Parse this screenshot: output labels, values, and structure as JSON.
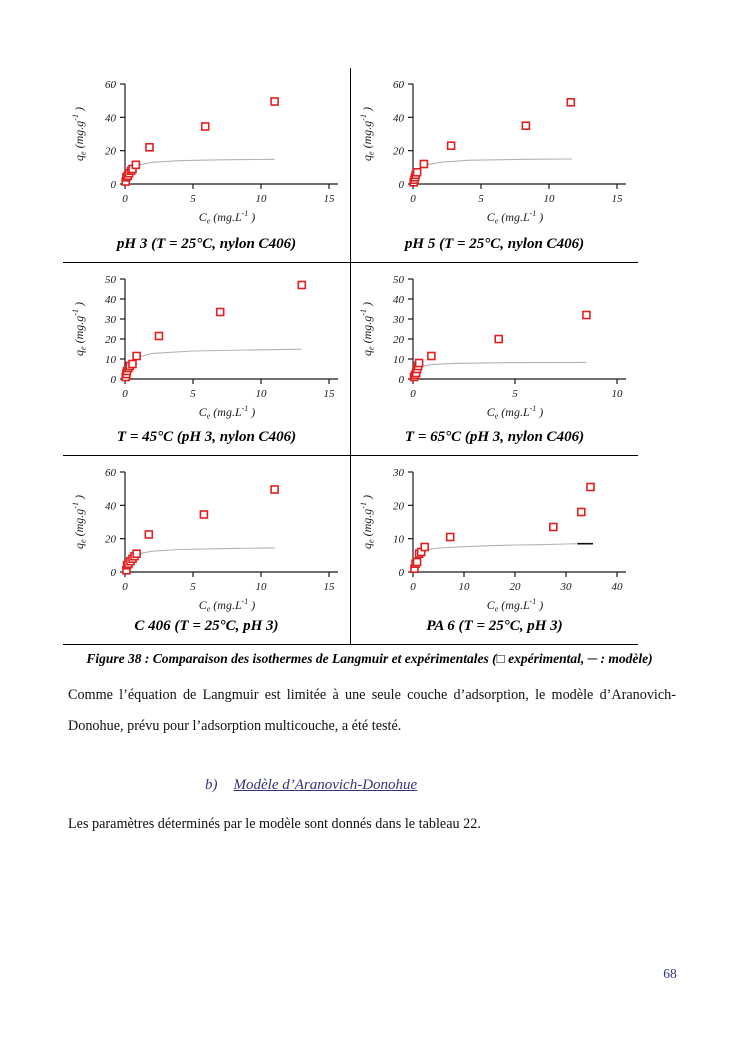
{
  "figure": {
    "caption": "Figure 38 : Comparaison des isothermes de Langmuir et expérimentales (□ expérimental, ─ : modèle)",
    "axis": {
      "xlabel": "Ce (mg.L-1)",
      "ylabel": "qe (mg.g-1)"
    },
    "marker_color": "#e02020",
    "model_color": "#b3b3b3",
    "axis_color": "#1a1a1a"
  },
  "chart_data": [
    {
      "type": "scatter",
      "title": "pH 3 (T = 25°C, nylon C406)",
      "xlabel": "Ce (mg.L-1)",
      "ylabel": "qe (mg.g-1)",
      "xlim": [
        0,
        15
      ],
      "xticks": [
        0,
        5,
        10,
        15
      ],
      "ylim": [
        0,
        60
      ],
      "yticks": [
        0,
        20,
        40,
        60
      ],
      "points": [
        [
          0.05,
          1.5
        ],
        [
          0.1,
          4
        ],
        [
          0.2,
          5
        ],
        [
          0.3,
          6.5
        ],
        [
          0.45,
          8
        ],
        [
          0.55,
          9
        ],
        [
          0.8,
          11.5
        ],
        [
          1.8,
          22
        ],
        [
          5.9,
          34.5
        ],
        [
          11,
          49.5
        ]
      ],
      "model": [
        [
          0.05,
          1
        ],
        [
          0.3,
          7
        ],
        [
          0.6,
          9.5
        ],
        [
          1,
          11.5
        ],
        [
          2,
          13
        ],
        [
          4,
          14
        ],
        [
          7,
          14.5
        ],
        [
          11,
          14.8
        ]
      ],
      "legend": {
        "points": "expérimental",
        "model": "modèle"
      }
    },
    {
      "type": "scatter",
      "title": "pH 5 (T = 25°C, nylon C406)",
      "xlabel": "Ce (mg.L-1)",
      "ylabel": "qe (mg.g-1)",
      "xlim": [
        0,
        15
      ],
      "xticks": [
        0,
        5,
        10,
        15
      ],
      "ylim": [
        0,
        60
      ],
      "yticks": [
        0,
        20,
        40,
        60
      ],
      "points": [
        [
          0.05,
          1
        ],
        [
          0.1,
          2.5
        ],
        [
          0.15,
          4
        ],
        [
          0.2,
          5.5
        ],
        [
          0.3,
          7
        ],
        [
          0.8,
          12
        ],
        [
          2.8,
          23
        ],
        [
          8.3,
          35
        ],
        [
          11.6,
          49
        ]
      ],
      "model": [
        [
          0.05,
          1
        ],
        [
          0.3,
          7
        ],
        [
          0.6,
          9.5
        ],
        [
          1,
          11.5
        ],
        [
          2,
          13
        ],
        [
          4,
          14.2
        ],
        [
          8,
          14.8
        ],
        [
          11.7,
          15
        ]
      ],
      "legend": {
        "points": "expérimental",
        "model": "modèle"
      }
    },
    {
      "type": "scatter",
      "title": "T = 45°C (pH 3, nylon C406)",
      "xlabel": "Ce (mg.L-1)",
      "ylabel": "qe (mg.g-1)",
      "xlim": [
        0,
        15
      ],
      "xticks": [
        0,
        5,
        10,
        15
      ],
      "ylim": [
        0,
        50
      ],
      "yticks": [
        0,
        10,
        20,
        30,
        40,
        50
      ],
      "points": [
        [
          0.05,
          1
        ],
        [
          0.1,
          2.5
        ],
        [
          0.15,
          4
        ],
        [
          0.25,
          5.5
        ],
        [
          0.35,
          6.5
        ],
        [
          0.55,
          7.5
        ],
        [
          0.85,
          11.5
        ],
        [
          2.5,
          21.5
        ],
        [
          7,
          33.5
        ],
        [
          13,
          47
        ]
      ],
      "model": [
        [
          0.05,
          1
        ],
        [
          0.3,
          6
        ],
        [
          0.6,
          9
        ],
        [
          1,
          11
        ],
        [
          2,
          12.8
        ],
        [
          5,
          14
        ],
        [
          9,
          14.5
        ],
        [
          13,
          14.9
        ]
      ],
      "legend": {
        "points": "expérimental",
        "model": "modèle"
      }
    },
    {
      "type": "scatter",
      "title": "T = 65°C (pH 3, nylon C406)",
      "xlabel": "Ce (mg.L-1)",
      "ylabel": "qe (mg.g-1)",
      "xlim": [
        0,
        10
      ],
      "xticks": [
        0,
        5,
        10
      ],
      "ylim": [
        0,
        50
      ],
      "yticks": [
        0,
        10,
        20,
        30,
        40,
        50
      ],
      "points": [
        [
          0.05,
          1
        ],
        [
          0.1,
          2
        ],
        [
          0.15,
          3
        ],
        [
          0.2,
          5
        ],
        [
          0.25,
          6.5
        ],
        [
          0.3,
          8
        ],
        [
          0.9,
          11.5
        ],
        [
          4.2,
          20
        ],
        [
          8.5,
          32
        ]
      ],
      "model": [
        [
          0.05,
          1.5
        ],
        [
          0.2,
          4.5
        ],
        [
          0.5,
          6.5
        ],
        [
          1,
          7.3
        ],
        [
          2,
          7.8
        ],
        [
          4,
          8.1
        ],
        [
          6,
          8.2
        ],
        [
          8.5,
          8.3
        ]
      ],
      "legend": {
        "points": "expérimental",
        "model": "modèle"
      }
    },
    {
      "type": "scatter",
      "title": "C 406 (T = 25°C, pH 3)",
      "xlabel": "Ce (mg.L-1)",
      "ylabel": "qe (mg.g-1)",
      "xlim": [
        0,
        15
      ],
      "xticks": [
        0,
        5,
        10,
        15
      ],
      "ylim": [
        0,
        60
      ],
      "yticks": [
        0,
        20,
        40,
        60
      ],
      "points": [
        [
          0.1,
          1
        ],
        [
          0.15,
          4
        ],
        [
          0.25,
          5
        ],
        [
          0.4,
          6.5
        ],
        [
          0.55,
          8
        ],
        [
          0.7,
          9.5
        ],
        [
          0.85,
          11
        ],
        [
          1.75,
          22.5
        ],
        [
          5.8,
          34.5
        ],
        [
          11,
          49.5
        ]
      ],
      "model": [
        [
          0.05,
          1
        ],
        [
          0.3,
          7
        ],
        [
          0.6,
          9.5
        ],
        [
          1,
          11
        ],
        [
          2,
          12.5
        ],
        [
          4,
          13.5
        ],
        [
          7,
          14
        ],
        [
          11,
          14.5
        ]
      ],
      "legend": {
        "points": "expérimental",
        "model": "modèle"
      }
    },
    {
      "type": "scatter",
      "title": "PA 6 (T = 25°C, pH 3)",
      "xlabel": "Ce (mg.L-1)",
      "ylabel": "qe (mg.g-1)",
      "xlim": [
        0,
        40
      ],
      "xticks": [
        0,
        10,
        20,
        30,
        40
      ],
      "ylim": [
        0,
        30
      ],
      "yticks": [
        0,
        10,
        20,
        30
      ],
      "points": [
        [
          0.3,
          1
        ],
        [
          0.5,
          2.5
        ],
        [
          0.8,
          3
        ],
        [
          1.2,
          5.5
        ],
        [
          1.6,
          6
        ],
        [
          2.3,
          7.5
        ],
        [
          7.3,
          10.5
        ],
        [
          27.5,
          13.5
        ],
        [
          33,
          18
        ],
        [
          34.8,
          25.5
        ]
      ],
      "model": [
        [
          0.3,
          4
        ],
        [
          1,
          5.8
        ],
        [
          2,
          6.5
        ],
        [
          5,
          7.2
        ],
        [
          10,
          7.6
        ],
        [
          15,
          7.9
        ],
        [
          20,
          8.1
        ],
        [
          25,
          8.2
        ],
        [
          30,
          8.4
        ],
        [
          32,
          8.5
        ]
      ],
      "dash": [
        [
          32.2,
          8.5
        ],
        [
          35.3,
          8.5
        ]
      ],
      "legend": {
        "points": "expérimental",
        "model": "modèle"
      }
    }
  ],
  "body": {
    "para1": "Comme l’équation de Langmuir est limitée à une seule couche d’adsorption, le modèle d’Aranovich-Donohue, prévu pour l’adsorption multicouche, a été testé.",
    "heading_prefix": "b)",
    "heading_text": "Modèle d’Aranovich-Donohue",
    "para2": "Les paramètres déterminés par le modèle sont donnés dans le tableau 22.",
    "heading_color": "#33337f",
    "page_number": "68"
  }
}
